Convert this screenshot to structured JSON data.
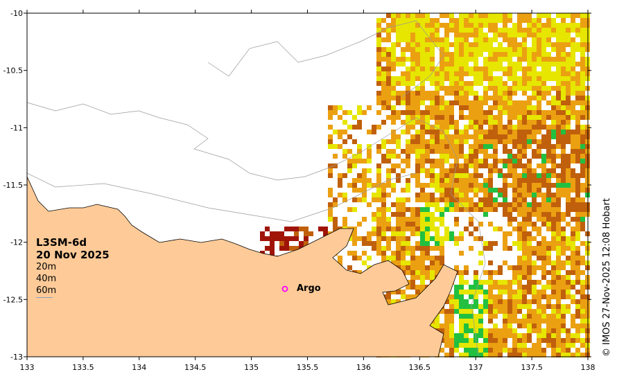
{
  "product": {
    "name": "L3SM-6d",
    "date": "20 Nov 2025"
  },
  "depth_contours": [
    "20m",
    "40m",
    "60m"
  ],
  "credit": "© IMOS 27-Nov-2025 12:08 Hobart",
  "marker": {
    "label": "Argo",
    "lon": 135.3,
    "lat": -12.4,
    "color": "#ff00ff"
  },
  "axes": {
    "lon_range": [
      133,
      138
    ],
    "lat_range": [
      -13,
      -10
    ],
    "x_ticks": [
      "133",
      "133.5",
      "134",
      "134.5",
      "135",
      "135.5",
      "136",
      "136.5",
      "137",
      "137.5",
      "138"
    ],
    "y_ticks": [
      "-10",
      "-10.5",
      "-11",
      "-11.5",
      "-12",
      "-12.5",
      "-13"
    ]
  },
  "colors": {
    "land": "#fdca98",
    "orange": "#eba012",
    "yellow": "#e6e600",
    "brown": "#c0600c",
    "dark_red": "#a01408",
    "green": "#22c040"
  }
}
